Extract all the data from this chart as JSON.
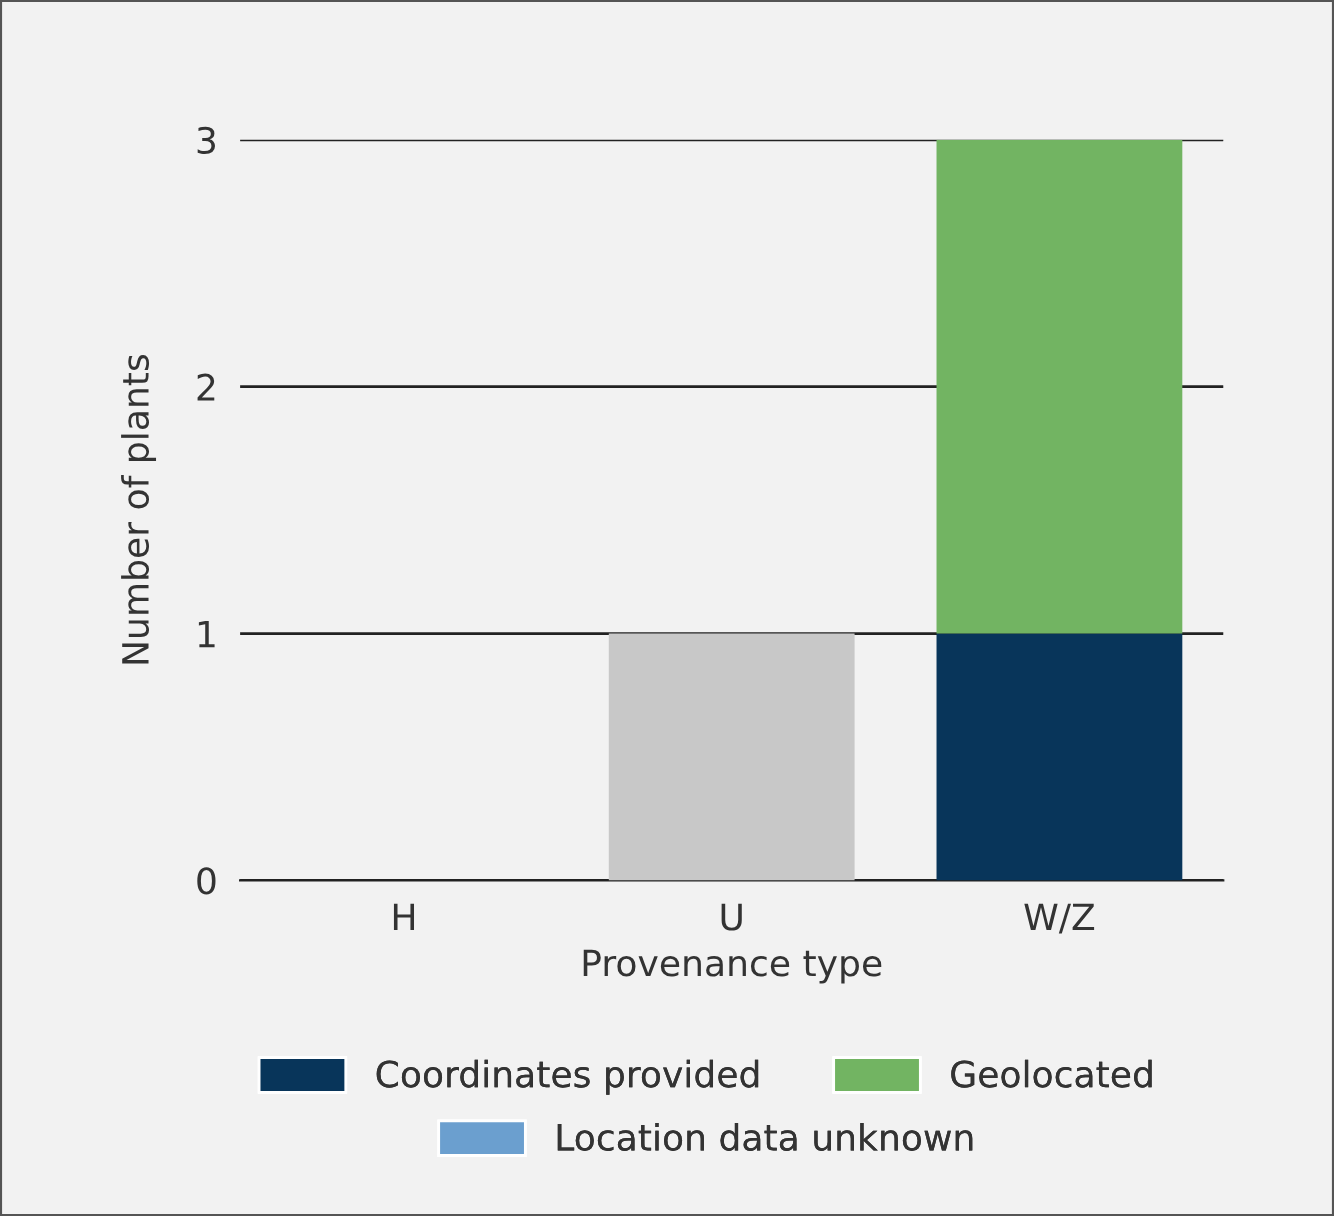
{
  "chart_data": {
    "type": "bar",
    "stacked": true,
    "xlabel": "Provenance type",
    "ylabel": "Number of plants",
    "categories": [
      "H",
      "U",
      "W/Z"
    ],
    "series": [
      {
        "name": "Coordinates provided",
        "color": "#08355a",
        "values": [
          null,
          null,
          1
        ]
      },
      {
        "name": "Geolocated",
        "color": "#72b462",
        "values": [
          null,
          null,
          2
        ]
      },
      {
        "name": "Location data unknown",
        "color": "#6b9fcf",
        "values": [
          null,
          null,
          null
        ]
      },
      {
        "color": "#c8c8c8",
        "values": [
          null,
          1,
          null
        ]
      }
    ],
    "ylim": [
      0,
      3
    ],
    "yticks": [
      0,
      1,
      2,
      3
    ],
    "grid": "y",
    "legend": "bottom"
  }
}
